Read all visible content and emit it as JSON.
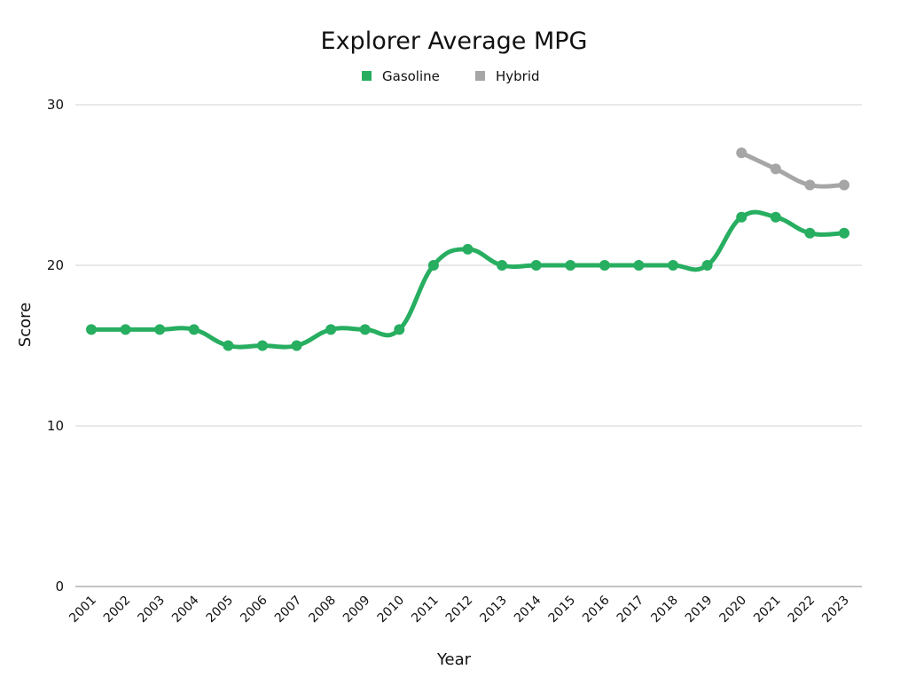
{
  "chart_data": {
    "type": "line",
    "title": "Explorer Average MPG",
    "xlabel": "Year",
    "ylabel": "Score",
    "ylim": [
      0,
      30
    ],
    "yticks": [
      0,
      10,
      20,
      30
    ],
    "grid": true,
    "legend_placement": "top-center",
    "categories": [
      "2001",
      "2002",
      "2003",
      "2004",
      "2005",
      "2006",
      "2007",
      "2008",
      "2009",
      "2010",
      "2011",
      "2012",
      "2013",
      "2014",
      "2015",
      "2016",
      "2017",
      "2018",
      "2019",
      "2020",
      "2021",
      "2022",
      "2023"
    ],
    "series": [
      {
        "name": "Gasoline",
        "color": "#27ae60",
        "values": [
          16,
          16,
          16,
          16,
          15,
          15,
          15,
          16,
          16,
          16,
          20,
          21,
          20,
          20,
          20,
          20,
          20,
          20,
          20,
          23,
          23,
          22,
          22
        ]
      },
      {
        "name": "Hybrid",
        "color": "#a6a6a6",
        "values": [
          null,
          null,
          null,
          null,
          null,
          null,
          null,
          null,
          null,
          null,
          null,
          null,
          null,
          null,
          null,
          null,
          null,
          null,
          null,
          27,
          26,
          25,
          25
        ]
      }
    ]
  }
}
